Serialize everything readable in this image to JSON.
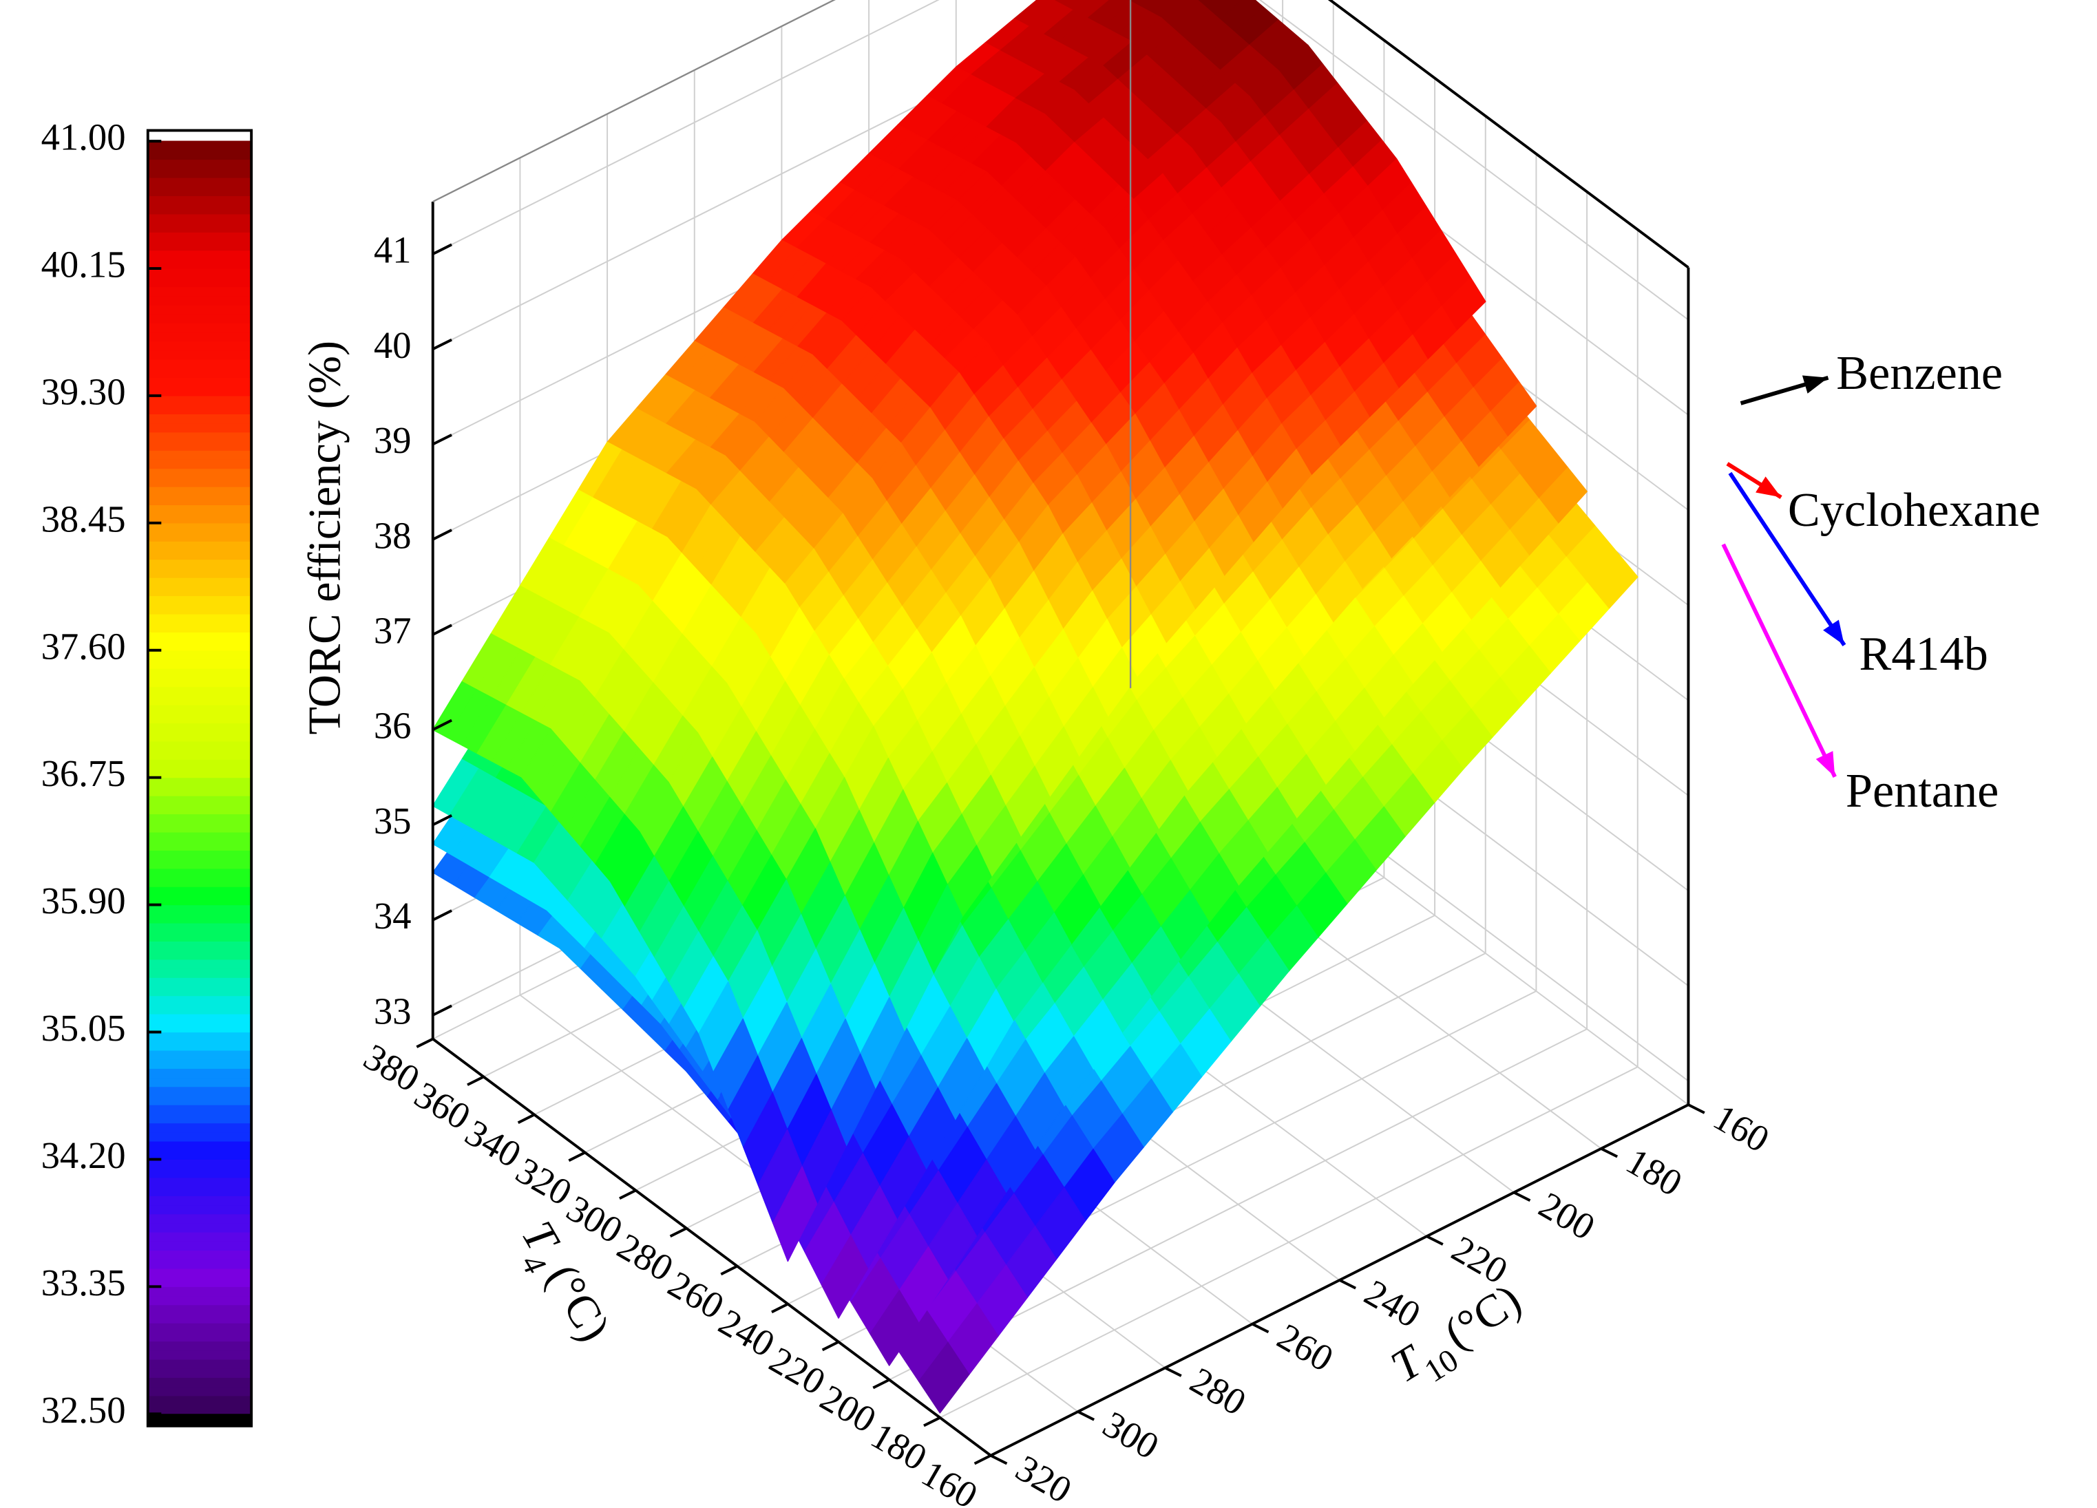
{
  "chart_data": {
    "type": "surface3d",
    "zlabel": "TORC efficiency (%)",
    "t4label": {
      "symbol": "T",
      "subscript": "4",
      "unit": "(°C)"
    },
    "t10label": {
      "symbol": "T",
      "subscript": "10",
      "unit": "(°C)"
    },
    "t4lim": [
      160,
      380
    ],
    "t4ticks": [
      160,
      180,
      200,
      220,
      240,
      260,
      280,
      300,
      320,
      340,
      360,
      380
    ],
    "t10lim": [
      160,
      320
    ],
    "t10ticks": [
      160,
      180,
      200,
      220,
      240,
      260,
      280,
      300,
      320
    ],
    "zlim": [
      32.75,
      41.55
    ],
    "zticks": [
      33,
      34,
      35,
      36,
      37,
      38,
      39,
      40,
      41
    ],
    "grid": true,
    "clim": [
      32.5,
      41
    ],
    "cticks": [
      {
        "value": 41,
        "label": "41.00"
      },
      {
        "value": 40.15,
        "label": "40.15"
      },
      {
        "value": 39.3,
        "label": "39.30"
      },
      {
        "value": 38.45,
        "label": "38.45"
      },
      {
        "value": 37.6,
        "label": "37.60"
      },
      {
        "value": 36.75,
        "label": "36.75"
      },
      {
        "value": 35.9,
        "label": "35.90"
      },
      {
        "value": 35.05,
        "label": "35.05"
      },
      {
        "value": 34.2,
        "label": "34.20"
      },
      {
        "value": 33.35,
        "label": "33.35"
      },
      {
        "value": 32.5,
        "label": "32.50"
      }
    ],
    "colormap": [
      "#3a0060",
      "#7a00e0",
      "#1010ff",
      "#00e8ff",
      "#00ff20",
      "#c8ff00",
      "#ffff00",
      "#ff9000",
      "#ff1000",
      "#ee0000",
      "#6a0000"
    ],
    "series": [
      {
        "name": "Benzene",
        "color": "#000000",
        "t4": [
          240,
          275,
          310,
          345,
          380
        ],
        "t10": [
          160,
          200,
          240,
          280,
          320
        ],
        "values": [
          [
            39.6,
            40.4,
            40.9,
            41.0,
            40.8
          ],
          [
            38.7,
            39.6,
            40.2,
            40.4,
            40.2
          ],
          [
            37.5,
            38.6,
            39.3,
            39.5,
            39.3
          ],
          [
            35.9,
            37.2,
            38.0,
            38.3,
            38.1
          ],
          [
            33.2,
            34.9,
            35.8,
            36.2,
            36.0
          ]
        ]
      },
      {
        "name": "Cyclohexane",
        "color": "#ff0000",
        "t4": [
          220,
          260,
          300,
          340,
          380
        ],
        "t10": [
          160,
          200,
          240,
          280,
          320
        ],
        "values": [
          [
            38.9,
            39.6,
            40.0,
            40.1,
            39.9
          ],
          [
            37.9,
            38.8,
            39.3,
            39.5,
            39.3
          ],
          [
            36.7,
            37.8,
            38.4,
            38.6,
            38.4
          ],
          [
            35.2,
            36.4,
            37.1,
            37.4,
            37.2
          ],
          [
            33.0,
            34.3,
            35.0,
            35.4,
            35.2
          ]
        ]
      },
      {
        "name": "R414b",
        "color": "#0000ff",
        "t4": [
          200,
          245,
          290,
          335,
          380
        ],
        "t10": [
          160,
          200,
          240,
          280,
          320
        ],
        "values": [
          [
            38.4,
            39.0,
            39.4,
            39.5,
            39.3
          ],
          [
            37.3,
            38.2,
            38.7,
            38.9,
            38.7
          ],
          [
            36.1,
            37.2,
            37.8,
            38.0,
            37.8
          ],
          [
            34.7,
            35.9,
            36.6,
            36.8,
            36.6
          ],
          [
            32.9,
            34.0,
            34.7,
            35.0,
            34.8
          ]
        ]
      },
      {
        "name": "Pentane",
        "color": "#ff00ff",
        "t4": [
          180,
          230,
          280,
          330,
          380
        ],
        "t10": [
          160,
          200,
          240,
          280,
          320
        ],
        "values": [
          [
            37.9,
            38.5,
            38.9,
            39.0,
            38.8
          ],
          [
            36.8,
            37.6,
            38.1,
            38.3,
            38.1
          ],
          [
            35.6,
            36.6,
            37.2,
            37.4,
            37.2
          ],
          [
            34.3,
            35.4,
            36.0,
            36.3,
            36.1
          ],
          [
            32.8,
            33.8,
            34.4,
            34.7,
            34.5
          ]
        ]
      }
    ]
  }
}
